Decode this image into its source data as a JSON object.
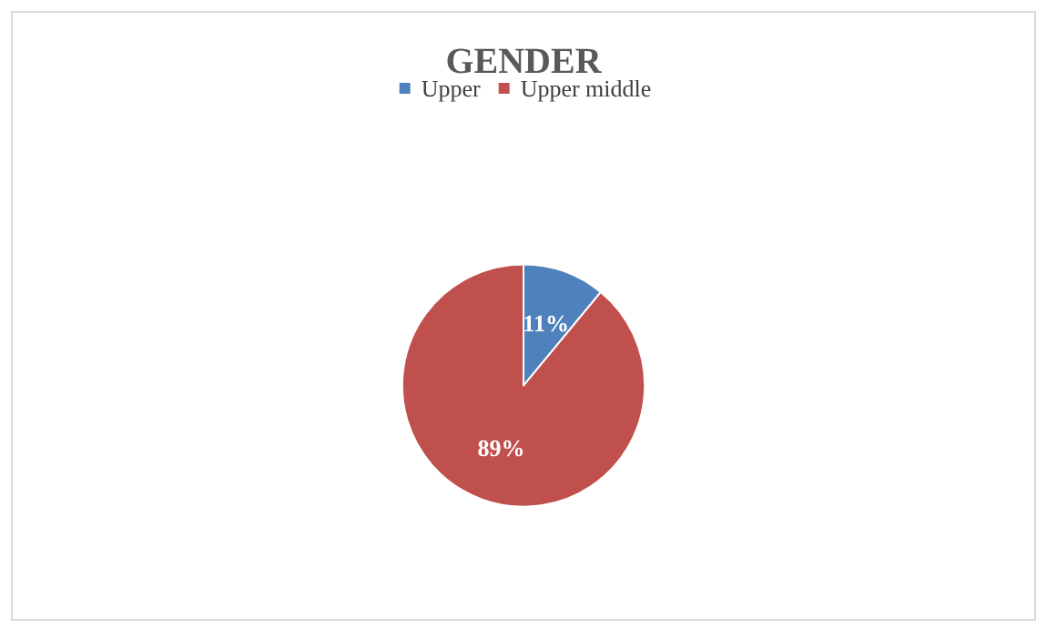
{
  "chart_data": {
    "type": "pie",
    "title": "GENDER",
    "categories": [
      "Upper",
      "Upper middle"
    ],
    "values": [
      11,
      89
    ],
    "colors": [
      "#4f81bd",
      "#c0504d"
    ],
    "value_labels": [
      "11%",
      "89%"
    ],
    "legend": "top"
  }
}
